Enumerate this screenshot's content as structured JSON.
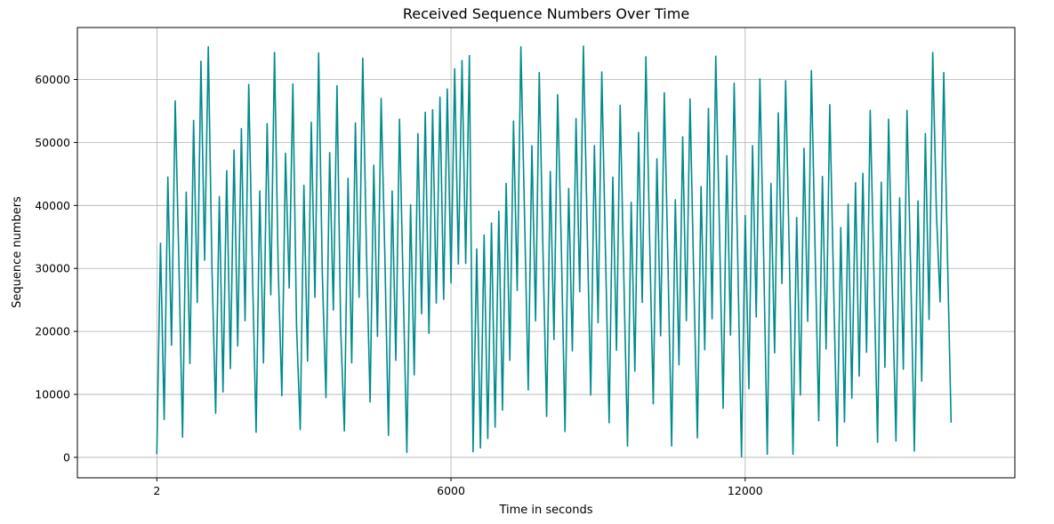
{
  "chart_data": {
    "type": "line",
    "title": "Received Sequence Numbers Over Time",
    "xlabel": "Time in seconds",
    "ylabel": "Sequence numbers",
    "xlim": [
      -1620,
      17500
    ],
    "ylim": [
      -3250,
      68250
    ],
    "x_ticks": [
      2,
      6000,
      12000
    ],
    "x_tick_labels": [
      "2",
      "6000",
      "12000"
    ],
    "y_ticks": [
      0,
      10000,
      20000,
      30000,
      40000,
      50000,
      60000
    ],
    "y_tick_labels": [
      "0",
      "10000",
      "20000",
      "30000",
      "40000",
      "50000",
      "60000"
    ],
    "grid": true,
    "line_color": "#008b8b",
    "series": [
      {
        "x": [
          0,
          75,
          150,
          225,
          300,
          375,
          450,
          525,
          600,
          675,
          750,
          825,
          900,
          975,
          1050,
          1125,
          1200,
          1275,
          1350,
          1425,
          1500,
          1575,
          1650,
          1725,
          1800,
          1875,
          1950,
          2025,
          2100,
          2175,
          2250,
          2325,
          2400,
          2475,
          2550,
          2625,
          2700,
          2775,
          2850,
          2925,
          3000,
          3075,
          3150,
          3225,
          3300,
          3375,
          3450,
          3525,
          3600,
          3675,
          3750,
          3825,
          3900,
          3975,
          4050,
          4125,
          4200,
          4275,
          4350,
          4425,
          4500,
          4575,
          4650,
          4725,
          4800,
          4875,
          4950,
          5025,
          5100,
          5175,
          5250,
          5325,
          5400,
          5475,
          5550,
          5625,
          5700,
          5775,
          5850,
          5925,
          6000,
          6075,
          6150,
          6225,
          6300,
          6375,
          6450,
          6525,
          6600,
          6675,
          6750,
          6825,
          6900,
          6975,
          7050,
          7125,
          7200,
          7275,
          7350,
          7425,
          7500,
          7575,
          7650,
          7725,
          7800,
          7875,
          7950,
          8025,
          8100,
          8175,
          8250,
          8325,
          8400,
          8475,
          8550,
          8625,
          8700,
          8775,
          8850,
          8925,
          9000,
          9075,
          9150,
          9225,
          9300,
          9375,
          9450,
          9525,
          9600,
          9675,
          9750,
          9825,
          9900,
          9975,
          10050,
          10125,
          10200,
          10275,
          10350,
          10425,
          10500,
          10575,
          10650,
          10725,
          10800,
          10875,
          10950,
          11025,
          11100,
          11175,
          11250,
          11325,
          11400,
          11475,
          11550,
          11625,
          11700,
          11775,
          11850,
          11925,
          12000,
          12075,
          12150,
          12225,
          12300,
          12375,
          12450,
          12525,
          12600,
          12675,
          12750,
          12825,
          12900,
          12975,
          13050,
          13125,
          13200,
          13275,
          13350,
          13425,
          13500,
          13575,
          13650,
          13725,
          13800,
          13875,
          13950,
          14025,
          14100,
          14175,
          14250,
          14325,
          14400,
          14475,
          14550,
          14625,
          14700,
          14775,
          14850,
          14925,
          15000,
          15075,
          15150,
          15225,
          15300,
          15375,
          15450,
          15525,
          15600,
          15675,
          15750,
          15825,
          15900,
          15975,
          16050,
          16125,
          16200
        ],
        "y": [
          500,
          34000,
          6000,
          44500,
          17800,
          56600,
          31000,
          3200,
          42100,
          14900,
          53500,
          24600,
          62900,
          31300,
          65200,
          30000,
          7000,
          41400,
          10400,
          45500,
          14100,
          48800,
          17700,
          52200,
          21700,
          59200,
          29600,
          4000,
          42300,
          15000,
          53000,
          25800,
          64300,
          30300,
          9800,
          48300,
          26900,
          59300,
          20800,
          4400,
          43200,
          15300,
          53200,
          25400,
          64200,
          29300,
          9500,
          48400,
          23400,
          59000,
          20500,
          4200,
          44300,
          15000,
          53100,
          25400,
          63400,
          33000,
          8800,
          46400,
          19200,
          57000,
          32300,
          3500,
          42300,
          15400,
          53700,
          27000,
          800,
          40100,
          13100,
          51400,
          22800,
          54800,
          19700,
          55200,
          24500,
          57200,
          25100,
          58500,
          27700,
          61700,
          30700,
          63000,
          30800,
          63800,
          900,
          33100,
          1500,
          35300,
          3000,
          37200,
          4800,
          39100,
          7500,
          43500,
          15400,
          53400,
          26500,
          65200,
          38400,
          10700,
          49500,
          21700,
          61100,
          33100,
          6500,
          45400,
          18700,
          57600,
          33500,
          4100,
          42700,
          16900,
          53800,
          26300,
          65300,
          37300,
          9900,
          49500,
          21400,
          61200,
          32800,
          5500,
          44500,
          17000,
          55900,
          28600,
          1800,
          40500,
          13700,
          51600,
          24600,
          63600,
          35000,
          8500,
          47400,
          19300,
          57900,
          30800,
          1800,
          40900,
          14700,
          50900,
          21700,
          56900,
          28900,
          3100,
          43000,
          17100,
          55400,
          22000,
          63700,
          36200,
          7800,
          47900,
          19400,
          59400,
          30900,
          100,
          38400,
          10900,
          49500,
          22300,
          60100,
          32700,
          500,
          43500,
          16600,
          54700,
          27600,
          59800,
          32100,
          500,
          38100,
          9900,
          49100,
          21600,
          61400,
          33300,
          5800,
          44600,
          17200,
          56000,
          28400,
          1800,
          36500,
          5600,
          40200,
          9400,
          43600,
          12900,
          45100,
          16700,
          55100,
          29300,
          2400,
          43700,
          14300,
          53700,
          27200,
          2600,
          41200,
          14000,
          55100,
          29800,
          1000,
          40700,
          12100,
          51400,
          21900,
          64300,
          38800,
          24700,
          61100,
          32100,
          5500
        ],
        "_comment": "dense sawtooth-like series sampled every ~75 s (approximate read of the plotted line)"
      }
    ]
  }
}
